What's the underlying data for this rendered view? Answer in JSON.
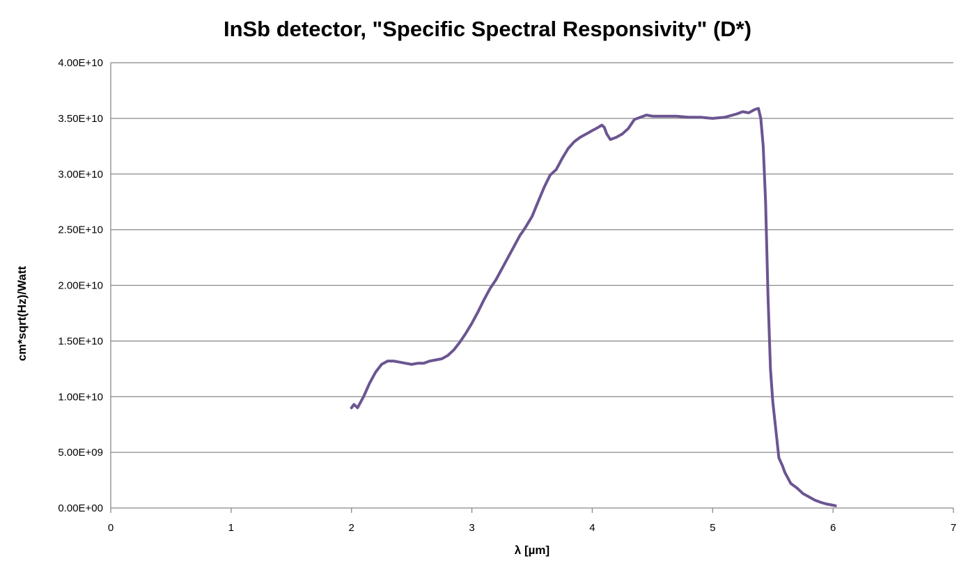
{
  "chart_data": {
    "type": "line",
    "title": "InSb detector, \"Specific Spectral Responsivity\" (D*)",
    "xlabel": "λ [µm]",
    "ylabel": "cm*sqrt(Hz)/Watt",
    "xlim": [
      0,
      7
    ],
    "ylim": [
      0,
      40000000000
    ],
    "x_ticks": [
      0,
      1,
      2,
      3,
      4,
      5,
      6,
      7
    ],
    "x_tick_labels": [
      "0",
      "1",
      "2",
      "3",
      "4",
      "5",
      "6",
      "7"
    ],
    "y_ticks": [
      0,
      5000000000,
      10000000000,
      15000000000,
      20000000000,
      25000000000,
      30000000000,
      35000000000,
      40000000000
    ],
    "y_tick_labels": [
      "0.00E+00",
      "5.00E+09",
      "1.00E+10",
      "1.50E+10",
      "2.00E+10",
      "2.50E+10",
      "3.00E+10",
      "3.50E+10",
      "4.00E+10"
    ],
    "grid": "horizontal",
    "legend": "none",
    "series": [
      {
        "color": "#6B5591",
        "x": [
          2.0,
          2.02,
          2.05,
          2.1,
          2.15,
          2.2,
          2.25,
          2.3,
          2.35,
          2.4,
          2.45,
          2.5,
          2.55,
          2.6,
          2.65,
          2.7,
          2.75,
          2.8,
          2.85,
          2.9,
          2.95,
          3.0,
          3.05,
          3.1,
          3.15,
          3.2,
          3.25,
          3.3,
          3.35,
          3.4,
          3.42,
          3.45,
          3.5,
          3.55,
          3.6,
          3.65,
          3.7,
          3.75,
          3.8,
          3.85,
          3.9,
          3.95,
          4.0,
          4.05,
          4.08,
          4.1,
          4.12,
          4.15,
          4.2,
          4.25,
          4.3,
          4.35,
          4.4,
          4.45,
          4.5,
          4.6,
          4.7,
          4.8,
          4.9,
          5.0,
          5.1,
          5.2,
          5.25,
          5.3,
          5.35,
          5.38,
          5.4,
          5.42,
          5.44,
          5.46,
          5.48,
          5.5,
          5.52,
          5.55,
          5.58,
          5.6,
          5.65,
          5.7,
          5.75,
          5.8,
          5.85,
          5.9,
          5.95,
          6.0,
          6.02
        ],
        "y": [
          9000000000,
          9300000000,
          9000000000,
          10000000000,
          11200000000,
          12200000000,
          12900000000,
          13200000000,
          13200000000,
          13100000000,
          13000000000,
          12900000000,
          13000000000,
          13000000000,
          13200000000,
          13300000000,
          13400000000,
          13700000000,
          14200000000,
          14900000000,
          15700000000,
          16600000000,
          17600000000,
          18700000000,
          19700000000,
          20500000000,
          21500000000,
          22500000000,
          23500000000,
          24500000000,
          24800000000,
          25300000000,
          26200000000,
          27500000000,
          28800000000,
          29900000000,
          30400000000,
          31400000000,
          32300000000,
          32900000000,
          33300000000,
          33600000000,
          33900000000,
          34200000000,
          34400000000,
          34200000000,
          33600000000,
          33100000000,
          33300000000,
          33600000000,
          34100000000,
          34900000000,
          35100000000,
          35300000000,
          35200000000,
          35200000000,
          35200000000,
          35100000000,
          35100000000,
          35000000000,
          35100000000,
          35400000000,
          35600000000,
          35500000000,
          35800000000,
          35900000000,
          35000000000,
          32500000000,
          27500000000,
          19000000000,
          12500000000,
          9500000000,
          7500000000,
          4500000000,
          3800000000,
          3200000000,
          2200000000,
          1800000000,
          1300000000,
          1000000000,
          700000000,
          500000000,
          350000000,
          250000000,
          200000000
        ]
      }
    ]
  }
}
